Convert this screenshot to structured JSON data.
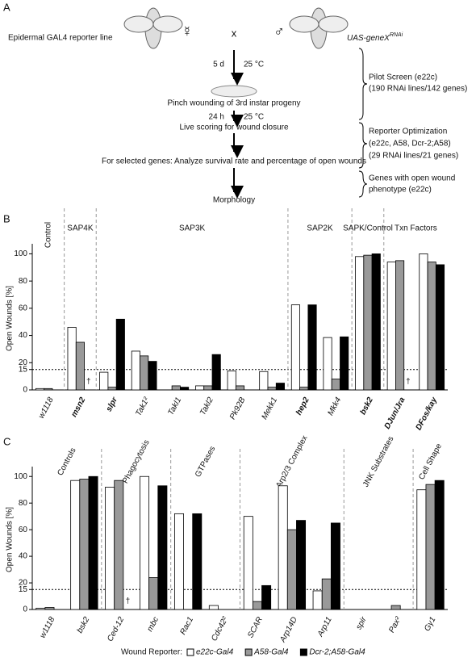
{
  "panel_a": {
    "label": "A",
    "left_label": "Epidermal GAL4 reporter line",
    "female": "☿",
    "cross": "x",
    "male": "♂",
    "right_label": "UAS-geneX",
    "right_label_sup": "RNAi",
    "time_1": "5 d",
    "temp_1": "25 °C",
    "step_1": "Pinch wounding of 3rd instar progeny",
    "time_2": "24 h",
    "temp_2": "25 °C",
    "step_2": "Live scoring for wound closure",
    "step_3": "For selected genes: Analyze survival rate and percentage of open wounds",
    "step_4": "Morphology",
    "bracket_1": [
      "Pilot Screen (e22c)",
      "(190 RNAi lines/142 genes)"
    ],
    "bracket_2": [
      "Reporter Optimization",
      "(e22c, A58, Dcr-2;A58)",
      "(29 RNAi lines/21 genes)"
    ],
    "bracket_3": [
      "Genes with open wound",
      "phenotype (e22c)"
    ]
  },
  "chart_data": [
    {
      "type": "bar",
      "panel": "B",
      "y_label": "Open Wounds [%]",
      "ylim": [
        0,
        105
      ],
      "yticks": [
        0,
        15,
        20,
        40,
        60,
        80,
        100
      ],
      "reference_line": 15,
      "groups": [
        {
          "label": "Control",
          "categories": [
            "w1118"
          ]
        },
        {
          "label": "SAP4K",
          "categories": [
            "msn2"
          ]
        },
        {
          "label": "SAP3K",
          "categories": [
            "slpr",
            "Tak1²",
            "Takl1",
            "Takl2",
            "Pk92B",
            "Mekk1"
          ]
        },
        {
          "label": "SAP2K",
          "categories": [
            "hep2",
            "Mkk4"
          ]
        },
        {
          "label": "SAPK/Control",
          "categories": [
            "bsk2"
          ]
        },
        {
          "label": "Txn Factors",
          "categories": [
            "DJun/Jra",
            "DFos/kay"
          ]
        }
      ],
      "series": [
        {
          "color": "#ffffff",
          "values": [
            1,
            46,
            13,
            28.5,
            null,
            3,
            14,
            13.5,
            62.5,
            38.5,
            98,
            94,
            100
          ]
        },
        {
          "color": "#999999",
          "values": [
            1,
            35,
            2,
            25,
            3,
            3,
            3,
            2,
            2,
            8,
            99,
            95,
            94
          ]
        },
        {
          "color": "#000000",
          "values": [
            null,
            null,
            52,
            21,
            2,
            26,
            null,
            5,
            62.5,
            39,
            100,
            null,
            92
          ],
          "value_labels": [
            null,
            "†",
            null,
            null,
            null,
            null,
            null,
            null,
            null,
            null,
            null,
            "†",
            null
          ]
        }
      ]
    },
    {
      "type": "bar",
      "panel": "C",
      "y_label": "Open Wounds [%]",
      "ylim": [
        0,
        105
      ],
      "yticks": [
        0,
        15,
        20,
        40,
        60,
        80,
        100
      ],
      "reference_line": 15,
      "legend_title": "Wound Reporter:",
      "groups": [
        {
          "label": "Controls",
          "categories": [
            "w1118",
            "bsk2"
          ]
        },
        {
          "label": "Phagocytosis",
          "categories": [
            "Ced-12",
            "mbc"
          ]
        },
        {
          "label": "GTPases",
          "categories": [
            "Rac1",
            "Cdc42²"
          ]
        },
        {
          "label": "Arp2/3 Complex",
          "categories": [
            "SCAR",
            "Arp14D",
            "Arp11"
          ]
        },
        {
          "label": "JNK Substrates",
          "categories": [
            "spir",
            "Pax²"
          ]
        },
        {
          "label": "Cell Shape",
          "categories": [
            "Gγ1"
          ]
        }
      ],
      "series": [
        {
          "name": "e22c-Gal4",
          "color": "#ffffff",
          "values": [
            1,
            97,
            92,
            100,
            72,
            3,
            70,
            93,
            14,
            null,
            null,
            90
          ]
        },
        {
          "name": "A58-Gal4",
          "color": "#999999",
          "values": [
            1.5,
            98,
            97,
            24,
            null,
            null,
            6,
            60,
            23,
            null,
            3,
            94
          ]
        },
        {
          "name": "Dcr-2;A58-Gal4",
          "color": "#000000",
          "values": [
            null,
            100,
            null,
            93,
            72,
            null,
            18,
            67,
            65,
            null,
            null,
            97
          ],
          "value_labels": [
            null,
            null,
            "†",
            null,
            null,
            null,
            null,
            null,
            null,
            null,
            null,
            null
          ]
        }
      ]
    }
  ]
}
